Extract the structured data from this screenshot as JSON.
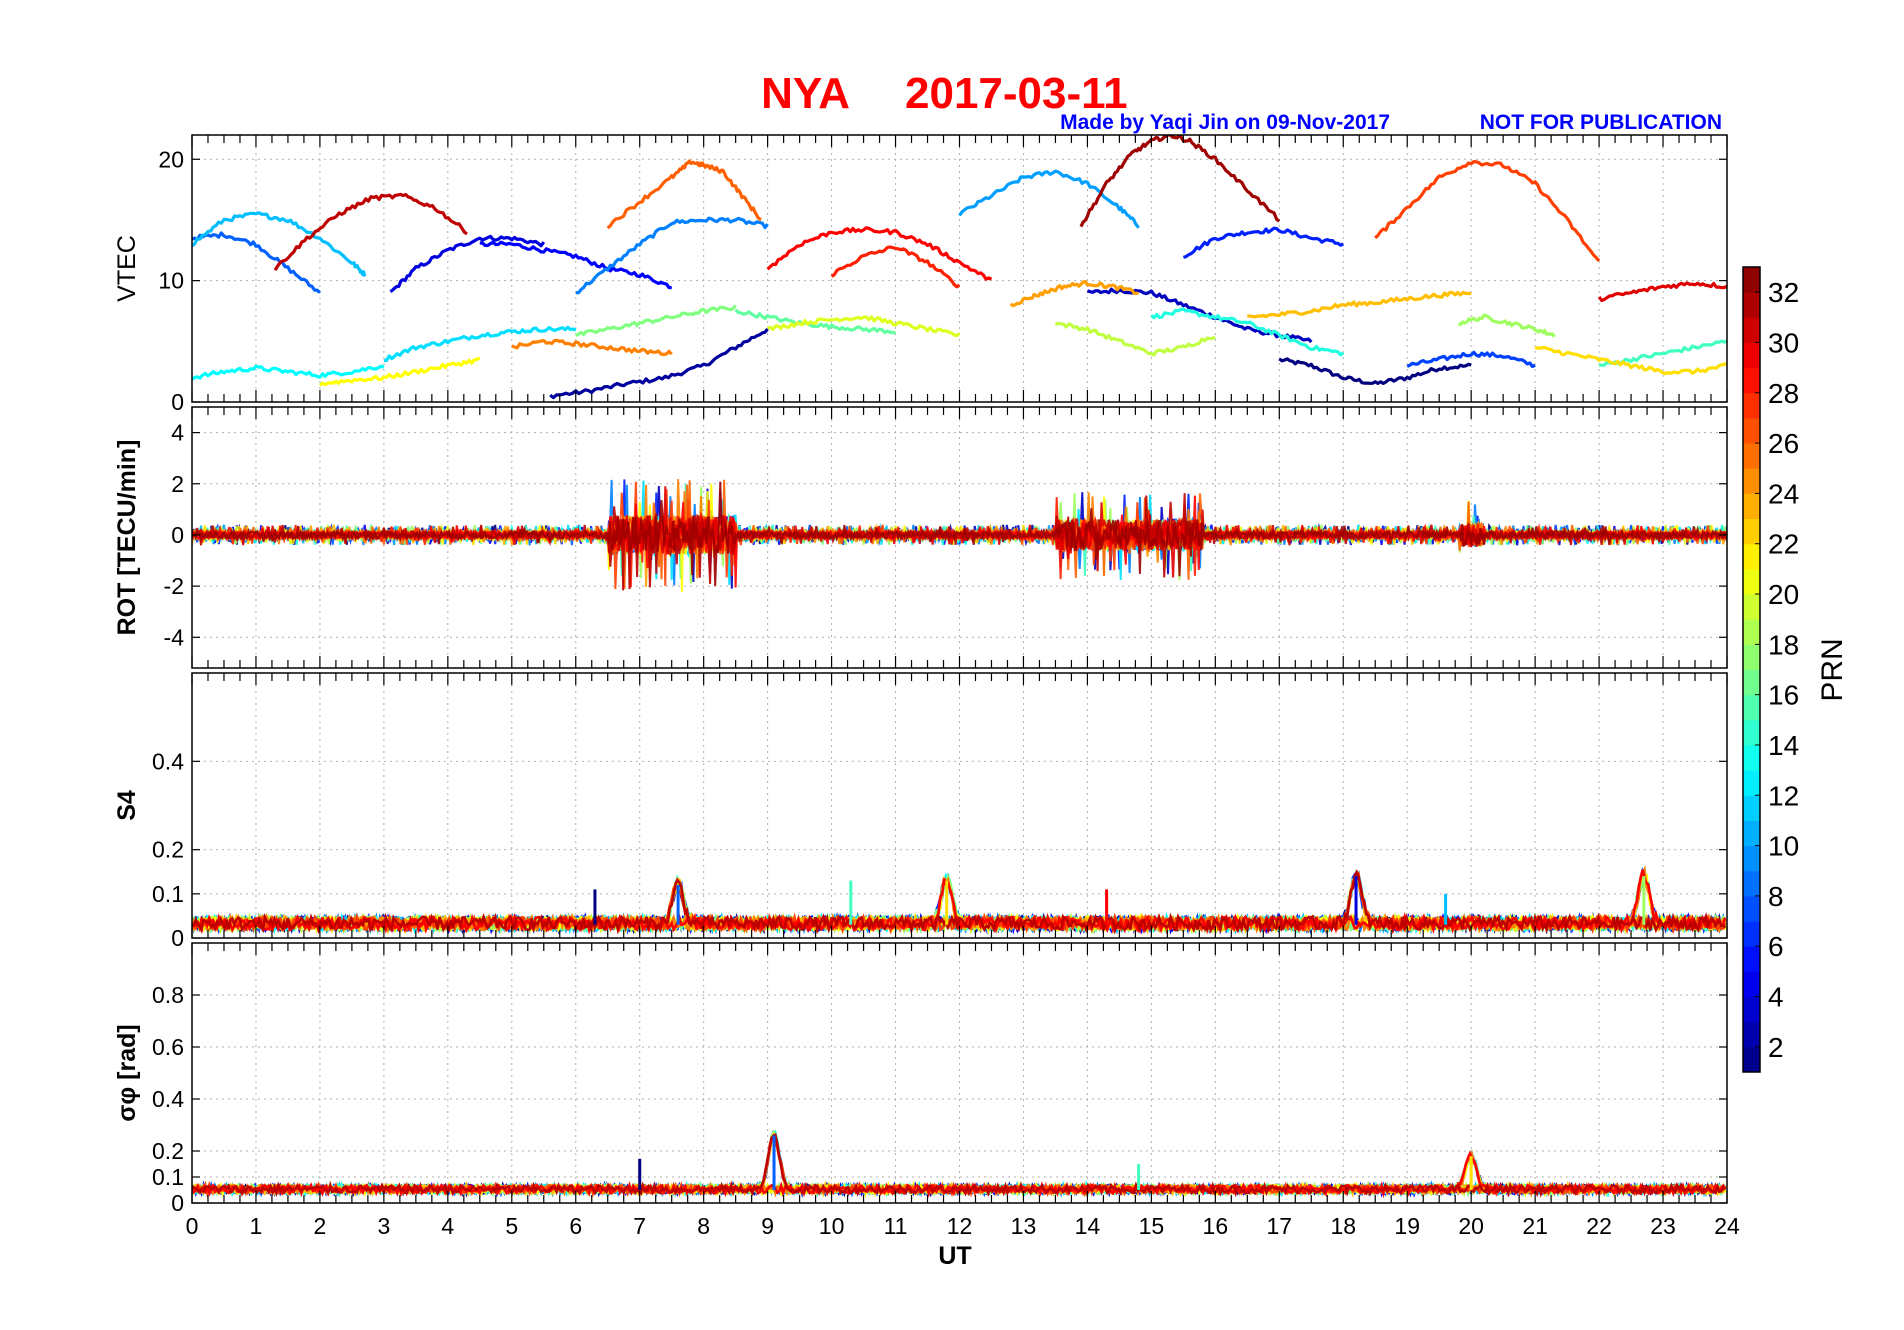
{
  "figure": {
    "station": "NYA",
    "date": "2017-03-11",
    "credit": "Made by Yaqi Jin on 09-Nov-2017",
    "notice": "NOT FOR PUBLICATION",
    "title_color": "#ff0000",
    "credit_color": "#0000ff"
  },
  "colorbar": {
    "label": "PRN",
    "range": [
      1,
      33
    ],
    "ticks": [
      "2",
      "4",
      "6",
      "8",
      "10",
      "12",
      "14",
      "16",
      "18",
      "20",
      "22",
      "24",
      "26",
      "28",
      "30",
      "32"
    ],
    "tick_values": [
      2,
      4,
      6,
      8,
      10,
      12,
      14,
      16,
      18,
      20,
      22,
      24,
      26,
      28,
      30,
      32
    ],
    "colormap": "jet"
  },
  "x_axis": {
    "label": "UT",
    "range": [
      0,
      24
    ],
    "ticks": [
      "0",
      "1",
      "2",
      "3",
      "4",
      "5",
      "6",
      "7",
      "8",
      "9",
      "10",
      "11",
      "12",
      "13",
      "14",
      "15",
      "16",
      "17",
      "18",
      "19",
      "20",
      "21",
      "22",
      "23",
      "24"
    ]
  },
  "chart_data": [
    {
      "type": "line",
      "panel": "VTEC",
      "ylabel": "VTEC",
      "ylim": [
        0,
        22
      ],
      "yticks": [
        "0",
        "10",
        "20"
      ],
      "ytick_values": [
        0,
        10,
        20
      ],
      "grid": true,
      "series": [
        {
          "prn": 1,
          "x": [
            17.0,
            17.5,
            18.0,
            18.5,
            19.0,
            19.5,
            20.0
          ],
          "y": [
            3.5,
            3.0,
            2.0,
            1.5,
            2.0,
            2.8,
            3.0
          ]
        },
        {
          "prn": 2,
          "x": [
            5.6,
            6.2,
            6.8,
            7.4,
            8.0,
            8.5,
            9.0
          ],
          "y": [
            0.5,
            0.9,
            1.5,
            2.0,
            3.0,
            4.5,
            6.0
          ]
        },
        {
          "prn": 3,
          "x": [
            14.0,
            14.5,
            15.0,
            15.5,
            16.0,
            16.5,
            17.0,
            17.5
          ],
          "y": [
            9.0,
            9.2,
            9.0,
            8.0,
            7.0,
            6.0,
            5.5,
            5.0
          ]
        },
        {
          "prn": 4,
          "x": [
            3.1,
            3.5,
            4.0,
            4.5,
            5.0,
            5.5
          ],
          "y": [
            9.0,
            11.0,
            12.5,
            13.5,
            13.5,
            13.0
          ]
        },
        {
          "prn": 5,
          "x": [
            4.5,
            5.0,
            5.5,
            6.0,
            6.5,
            7.0,
            7.5
          ],
          "y": [
            13.0,
            13.0,
            12.5,
            12.0,
            11.0,
            10.5,
            9.5
          ]
        },
        {
          "prn": 6,
          "x": [
            15.5,
            16.0,
            16.5,
            17.0,
            17.5,
            18.0
          ],
          "y": [
            12.0,
            13.5,
            14.0,
            14.2,
            13.5,
            13.0
          ]
        },
        {
          "prn": 7,
          "x": [
            19.0,
            19.5,
            20.0,
            20.5,
            21.0
          ],
          "y": [
            3.0,
            3.5,
            4.0,
            3.8,
            3.0
          ]
        },
        {
          "prn": 8,
          "x": [
            0.0,
            0.5,
            1.0,
            1.5,
            2.0
          ],
          "y": [
            13.5,
            13.8,
            13.0,
            11.0,
            9.0
          ]
        },
        {
          "prn": 9,
          "x": [
            6.0,
            6.5,
            7.0,
            7.5,
            8.0,
            8.5,
            9.0
          ],
          "y": [
            9.0,
            11.0,
            13.0,
            14.8,
            15.0,
            15.0,
            14.5
          ]
        },
        {
          "prn": 10,
          "x": [
            12.0,
            12.5,
            13.0,
            13.5,
            14.0,
            14.5,
            14.8
          ],
          "y": [
            15.5,
            17.0,
            18.5,
            19.0,
            18.0,
            16.0,
            14.5
          ]
        },
        {
          "prn": 11,
          "x": [
            0.0,
            0.5,
            1.0,
            1.5,
            2.0,
            2.5,
            2.7
          ],
          "y": [
            13.0,
            15.0,
            15.5,
            15.0,
            13.5,
            11.5,
            10.5
          ]
        },
        {
          "prn": 12,
          "x": [
            3.0,
            3.5,
            4.0,
            4.5,
            5.0,
            5.5,
            6.0
          ],
          "y": [
            3.5,
            4.5,
            5.0,
            5.5,
            5.8,
            6.0,
            6.0
          ]
        },
        {
          "prn": 13,
          "x": [
            0.0,
            0.5,
            1.0,
            1.5,
            2.0,
            2.5,
            3.0
          ],
          "y": [
            2.0,
            2.5,
            2.8,
            2.5,
            2.2,
            2.5,
            3.0
          ]
        },
        {
          "prn": 14,
          "x": [
            15.0,
            15.5,
            16.0,
            16.5,
            17.0,
            17.5,
            18.0
          ],
          "y": [
            7.0,
            7.5,
            7.0,
            6.5,
            5.5,
            4.5,
            4.0
          ]
        },
        {
          "prn": 15,
          "x": [
            22.0,
            22.5,
            23.0,
            23.5,
            24.0
          ],
          "y": [
            3.0,
            3.5,
            4.0,
            4.5,
            5.0
          ]
        },
        {
          "prn": 16,
          "x": [
            8.5,
            9.0,
            9.5,
            10.0,
            10.5,
            11.0
          ],
          "y": [
            7.5,
            7.0,
            6.5,
            6.2,
            6.0,
            5.8
          ]
        },
        {
          "prn": 17,
          "x": [
            6.0,
            6.5,
            7.0,
            7.5,
            8.0,
            8.5
          ],
          "y": [
            5.5,
            6.0,
            6.5,
            7.0,
            7.5,
            7.8
          ]
        },
        {
          "prn": 18,
          "x": [
            19.8,
            20.2,
            20.6,
            21.0,
            21.3
          ],
          "y": [
            6.5,
            7.0,
            6.5,
            6.0,
            5.5
          ]
        },
        {
          "prn": 19,
          "x": [
            13.5,
            14.0,
            14.5,
            15.0,
            15.5,
            16.0
          ],
          "y": [
            6.5,
            6.0,
            5.0,
            4.0,
            4.5,
            5.5
          ]
        },
        {
          "prn": 20,
          "x": [
            9.0,
            9.5,
            10.0,
            10.5,
            11.0,
            11.5,
            12.0
          ],
          "y": [
            6.0,
            6.5,
            6.8,
            7.0,
            6.5,
            6.0,
            5.5
          ]
        },
        {
          "prn": 21,
          "x": [
            2.0,
            2.5,
            3.0,
            3.5,
            4.0,
            4.5
          ],
          "y": [
            1.5,
            1.8,
            2.0,
            2.5,
            3.0,
            3.5
          ]
        },
        {
          "prn": 22,
          "x": [
            21.0,
            21.5,
            22.0,
            22.5,
            23.0,
            23.5,
            24.0
          ],
          "y": [
            4.5,
            4.0,
            3.5,
            3.0,
            2.5,
            2.5,
            3.0
          ]
        },
        {
          "prn": 23,
          "x": [
            16.5,
            17.0,
            17.5,
            18.0,
            18.5,
            19.0,
            19.5,
            20.0
          ],
          "y": [
            7.0,
            7.2,
            7.5,
            8.0,
            8.2,
            8.5,
            8.8,
            9.0
          ]
        },
        {
          "prn": 24,
          "x": [
            12.8,
            13.2,
            13.6,
            14.0,
            14.4,
            14.8
          ],
          "y": [
            8.0,
            8.8,
            9.5,
            9.8,
            9.5,
            9.0
          ]
        },
        {
          "prn": 25,
          "x": [
            5.0,
            5.5,
            6.0,
            6.5,
            7.0,
            7.5
          ],
          "y": [
            4.5,
            5.0,
            4.8,
            4.5,
            4.2,
            4.0
          ]
        },
        {
          "prn": 26,
          "x": [
            6.5,
            7.0,
            7.5,
            7.8,
            8.0,
            8.3,
            8.6,
            8.9
          ],
          "y": [
            14.5,
            16.5,
            18.5,
            19.8,
            19.5,
            19.0,
            17.0,
            15.0
          ]
        },
        {
          "prn": 27,
          "x": [
            18.5,
            19.0,
            19.5,
            20.0,
            20.5,
            21.0,
            21.5,
            22.0
          ],
          "y": [
            13.5,
            16.0,
            18.5,
            19.8,
            19.5,
            18.0,
            15.0,
            11.5
          ]
        },
        {
          "prn": 28,
          "x": [
            10.0,
            10.5,
            11.0,
            11.5,
            12.0
          ],
          "y": [
            10.5,
            12.0,
            12.8,
            11.5,
            9.5
          ]
        },
        {
          "prn": 29,
          "x": [
            9.0,
            9.5,
            10.0,
            10.5,
            11.0,
            11.5,
            12.0,
            12.5
          ],
          "y": [
            11.0,
            13.0,
            14.0,
            14.2,
            14.0,
            13.0,
            11.5,
            10.0
          ]
        },
        {
          "prn": 30,
          "x": [
            22.0,
            22.5,
            23.0,
            23.5,
            24.0
          ],
          "y": [
            8.5,
            9.0,
            9.5,
            9.8,
            9.5
          ]
        },
        {
          "prn": 31,
          "x": [
            1.3,
            1.8,
            2.3,
            2.8,
            3.3,
            3.8,
            4.3
          ],
          "y": [
            11.0,
            13.5,
            15.5,
            16.8,
            17.0,
            16.0,
            14.0
          ]
        },
        {
          "prn": 32,
          "x": [
            13.9,
            14.3,
            14.7,
            15.0,
            15.3,
            15.6,
            16.0,
            16.5,
            17.0
          ],
          "y": [
            14.5,
            18.0,
            20.5,
            21.5,
            22.0,
            21.5,
            20.0,
            17.5,
            15.0
          ]
        }
      ]
    },
    {
      "type": "line",
      "panel": "ROT",
      "ylabel": "ROT [TECU/min]",
      "ylim": [
        -5.2,
        5
      ],
      "yticks": [
        "4",
        "2",
        "0",
        "-2",
        "-4"
      ],
      "ytick_values": [
        4,
        2,
        0,
        -2,
        -4
      ],
      "grid": true,
      "baseline": 0,
      "noise_level": 0.25,
      "active_intervals": [
        {
          "x": [
            6.5,
            8.5
          ],
          "amplitude": 2.8
        },
        {
          "x": [
            13.5,
            15.8
          ],
          "amplitude": 2.2
        },
        {
          "x": [
            19.8,
            20.2
          ],
          "amplitude": 1.7
        }
      ]
    },
    {
      "type": "line",
      "panel": "S4",
      "ylabel": "S4",
      "ylim": [
        0,
        0.6
      ],
      "yticks": [
        "0",
        "0.1",
        "0.2",
        "0.4"
      ],
      "ytick_values": [
        0,
        0.1,
        0.2,
        0.4
      ],
      "grid": true,
      "baseline": 0.03,
      "peaks": [
        {
          "x": 6.3,
          "y": 0.11
        },
        {
          "x": 7.6,
          "y": 0.12
        },
        {
          "x": 10.3,
          "y": 0.13
        },
        {
          "x": 11.8,
          "y": 0.13
        },
        {
          "x": 14.3,
          "y": 0.11
        },
        {
          "x": 18.2,
          "y": 0.14
        },
        {
          "x": 19.6,
          "y": 0.1
        },
        {
          "x": 22.7,
          "y": 0.14
        }
      ]
    },
    {
      "type": "line",
      "panel": "sigma_phi",
      "ylabel": "σφ [rad]",
      "ylim": [
        0,
        1
      ],
      "yticks": [
        "0",
        "0.1",
        "0.2",
        "0.4",
        "0.6",
        "0.8"
      ],
      "ytick_values": [
        0,
        0.1,
        0.2,
        0.4,
        0.6,
        0.8
      ],
      "grid": true,
      "baseline": 0.05,
      "peaks": [
        {
          "x": 7.0,
          "y": 0.17
        },
        {
          "x": 9.1,
          "y": 0.26
        },
        {
          "x": 14.8,
          "y": 0.15
        },
        {
          "x": 20.0,
          "y": 0.18
        }
      ]
    }
  ]
}
